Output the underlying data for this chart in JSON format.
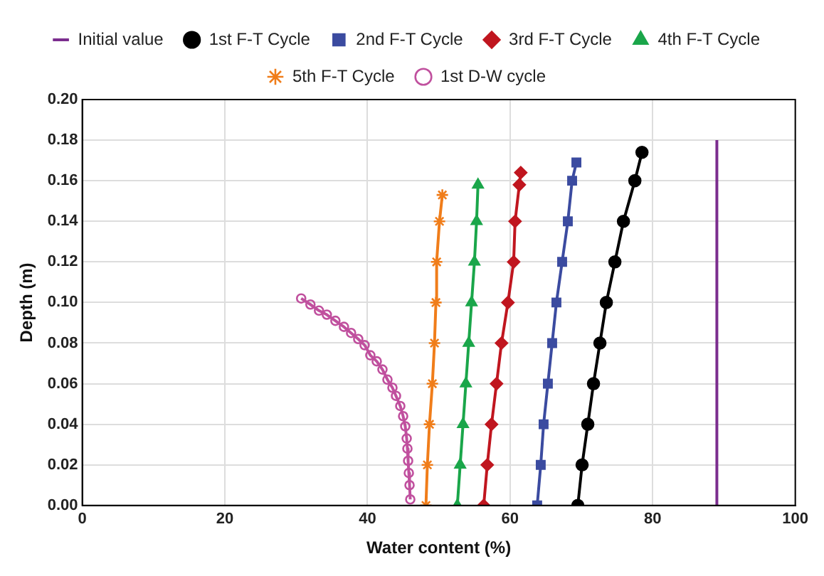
{
  "chart_data": {
    "type": "line",
    "xlabel": "Water content (%)",
    "ylabel": "Depth (m)",
    "xlim": [
      0,
      100
    ],
    "xticks": [
      0,
      20,
      40,
      60,
      80,
      100
    ],
    "ylim": [
      0,
      0.2
    ],
    "yticks": [
      {
        "value": 0,
        "label": "0.00"
      },
      {
        "value": 0.02,
        "label": "0.02"
      },
      {
        "value": 0.04,
        "label": "0.04"
      },
      {
        "value": 0.06,
        "label": "0.06"
      },
      {
        "value": 0.08,
        "label": "0.08"
      },
      {
        "value": 0.1,
        "label": "0.10"
      },
      {
        "value": 0.12,
        "label": "0.12"
      },
      {
        "value": 0.14,
        "label": "0.14"
      },
      {
        "value": 0.16,
        "label": "0.16"
      },
      {
        "value": 0.18,
        "label": "0.18"
      },
      {
        "value": 0.2,
        "label": "0.20"
      }
    ],
    "grid": true,
    "legend": "top",
    "line_style": "solid",
    "series": [
      {
        "name": "Initial value",
        "color": "#7b2d8e",
        "marker": "none",
        "x": [
          89,
          89
        ],
        "values": [
          0,
          0.18
        ]
      },
      {
        "name": "1st F-T Cycle",
        "color": "#000000",
        "marker": "circle",
        "x": [
          69.5,
          70.1,
          70.9,
          71.7,
          72.6,
          73.5,
          74.7,
          75.9,
          77.5,
          78.5
        ],
        "values": [
          0,
          0.02,
          0.04,
          0.06,
          0.08,
          0.1,
          0.12,
          0.14,
          0.16,
          0.174
        ]
      },
      {
        "name": "2nd F-T Cycle",
        "color": "#3b4ba0",
        "marker": "square",
        "x": [
          63.8,
          64.3,
          64.7,
          65.3,
          65.9,
          66.5,
          67.3,
          68.1,
          68.7,
          69.3
        ],
        "values": [
          0,
          0.02,
          0.04,
          0.06,
          0.08,
          0.1,
          0.12,
          0.14,
          0.16,
          0.169
        ]
      },
      {
        "name": "3rd F-T Cycle",
        "color": "#c0161f",
        "marker": "diamond",
        "x": [
          56.3,
          56.8,
          57.4,
          58.1,
          58.8,
          59.7,
          60.5,
          60.7,
          61.3,
          61.5
        ],
        "values": [
          0,
          0.02,
          0.04,
          0.06,
          0.08,
          0.1,
          0.12,
          0.14,
          0.158,
          0.164
        ]
      },
      {
        "name": "4th F-T Cycle",
        "color": "#1aa64a",
        "marker": "triangle",
        "x": [
          52.6,
          53.0,
          53.4,
          53.8,
          54.2,
          54.6,
          55.0,
          55.3,
          55.5
        ],
        "values": [
          0,
          0.02,
          0.04,
          0.06,
          0.08,
          0.1,
          0.12,
          0.14,
          0.158
        ]
      },
      {
        "name": "5th F-T Cycle",
        "color": "#f07d1a",
        "marker": "cross",
        "x": [
          48.2,
          48.4,
          48.7,
          49.1,
          49.4,
          49.6,
          49.7,
          50.1,
          50.5
        ],
        "values": [
          0,
          0.02,
          0.04,
          0.06,
          0.08,
          0.1,
          0.12,
          0.14,
          0.153
        ]
      },
      {
        "name": "1st D-W cycle",
        "color": "#c0509e",
        "marker": "circle",
        "x": [
          30.7,
          32.0,
          33.2,
          34.3,
          35.5,
          36.7,
          37.7,
          38.7,
          39.6,
          40.4,
          41.3,
          42.1,
          42.8,
          43.5,
          44.0,
          44.6,
          45.0,
          45.3,
          45.5,
          45.6,
          45.7,
          45.8,
          45.9,
          46.0
        ],
        "values": [
          0.102,
          0.099,
          0.096,
          0.094,
          0.091,
          0.088,
          0.085,
          0.082,
          0.079,
          0.074,
          0.071,
          0.067,
          0.062,
          0.058,
          0.054,
          0.049,
          0.044,
          0.039,
          0.033,
          0.028,
          0.022,
          0.016,
          0.01,
          0.003
        ]
      }
    ]
  }
}
